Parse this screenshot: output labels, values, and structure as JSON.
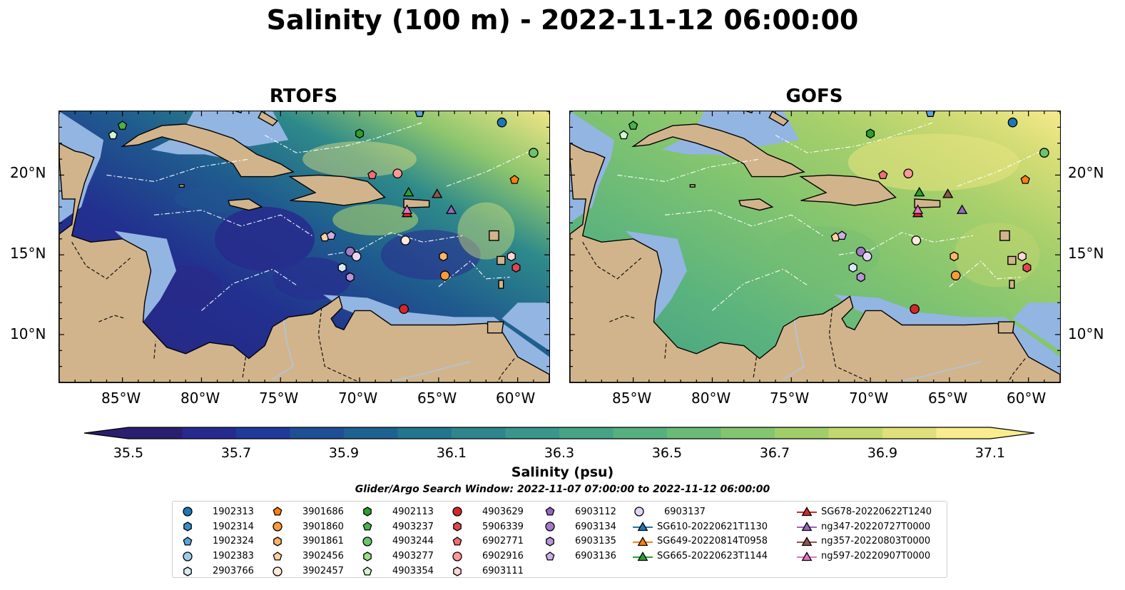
{
  "figure": {
    "title": "Salinity (100 m) - 2022-11-12 06:00:00",
    "panels": [
      {
        "title": "RTOFS",
        "model": "RTOFS"
      },
      {
        "title": "GOFS",
        "model": "GOFS"
      }
    ],
    "lat_labels": [
      "20°N",
      "15°N",
      "10°N"
    ],
    "lon_labels": [
      "85°W",
      "80°W",
      "75°W",
      "70°W",
      "65°W",
      "60°W"
    ]
  },
  "colorbar": {
    "label": "Salinity (psu)",
    "min": 35.5,
    "max": 37.1,
    "ticks": [
      "35.5",
      "35.7",
      "35.9",
      "36.1",
      "36.3",
      "36.5",
      "36.7",
      "36.9",
      "37.1"
    ],
    "colors": [
      "#2a1f6e",
      "#262a8f",
      "#1f3a9a",
      "#1e4f94",
      "#1d6290",
      "#22758e",
      "#2e868c",
      "#3a958a",
      "#47a386",
      "#56b17f",
      "#6abb77",
      "#84c56f",
      "#a2ce6a",
      "#c2d86e",
      "#e0e07a",
      "#f9ec8e"
    ]
  },
  "legend": {
    "search_window": "Glider/Argo Search Window: 2022-11-07 07:00:00 to 2022-11-12 06:00:00",
    "columns": [
      [
        {
          "label": "1902313",
          "shape": "circle",
          "color": "#1f77b4"
        },
        {
          "label": "1902314",
          "shape": "hexagon",
          "color": "#3a8dc9"
        },
        {
          "label": "1902324",
          "shape": "pentagon",
          "color": "#5aa5dc"
        },
        {
          "label": "1902383",
          "shape": "circle",
          "color": "#9ecae9"
        },
        {
          "label": "2903766",
          "shape": "hexagon",
          "color": "#d6eaf8"
        }
      ],
      [
        {
          "label": "3901686",
          "shape": "pentagon",
          "color": "#ff7f0e"
        },
        {
          "label": "3901860",
          "shape": "circle",
          "color": "#fd9a3a"
        },
        {
          "label": "3901861",
          "shape": "hexagon",
          "color": "#fdb56a"
        },
        {
          "label": "3902456",
          "shape": "pentagon",
          "color": "#fdd0a2"
        },
        {
          "label": "3902457",
          "shape": "circle",
          "color": "#feeadb"
        }
      ],
      [
        {
          "label": "4902113",
          "shape": "hexagon",
          "color": "#2ca02c"
        },
        {
          "label": "4903237",
          "shape": "pentagon",
          "color": "#4cb04c"
        },
        {
          "label": "4903244",
          "shape": "circle",
          "color": "#6cc46c"
        },
        {
          "label": "4903277",
          "shape": "hexagon",
          "color": "#98df8a"
        },
        {
          "label": "4903354",
          "shape": "pentagon",
          "color": "#d4f5cd"
        }
      ],
      [
        {
          "label": "4903629",
          "shape": "circle",
          "color": "#d62728"
        },
        {
          "label": "5906339",
          "shape": "hexagon",
          "color": "#e0474c"
        },
        {
          "label": "6902771",
          "shape": "pentagon",
          "color": "#ee6f75"
        },
        {
          "label": "6902916",
          "shape": "circle",
          "color": "#ff9896"
        },
        {
          "label": "6903111",
          "shape": "hexagon",
          "color": "#ffd6d6"
        }
      ],
      [
        {
          "label": "6903112",
          "shape": "pentagon",
          "color": "#9467bd"
        },
        {
          "label": "6903134",
          "shape": "circle",
          "color": "#a47bcb"
        },
        {
          "label": "6903135",
          "shape": "hexagon",
          "color": "#b894d8"
        },
        {
          "label": "6903136",
          "shape": "pentagon",
          "color": "#cbb0e6"
        }
      ],
      [
        {
          "label": "6903137",
          "shape": "circle",
          "color": "#e5d5f5"
        },
        {
          "label": "SG610-20220621T1130",
          "shape": "triangle-line",
          "color": "#1f77b4"
        },
        {
          "label": "SG649-20220814T0958",
          "shape": "triangle-line",
          "color": "#ff7f0e"
        },
        {
          "label": "SG665-20220623T1144",
          "shape": "triangle-line",
          "color": "#2ca02c"
        }
      ],
      [
        {
          "label": "SG678-20220622T1240",
          "shape": "triangle-line",
          "color": "#d62728"
        },
        {
          "label": "ng347-20220727T0000",
          "shape": "triangle-line",
          "color": "#9467bd"
        },
        {
          "label": "ng357-20220803T0000",
          "shape": "triangle-line",
          "color": "#8c564b"
        },
        {
          "label": "ng597-20220907T0000",
          "shape": "triangle-line",
          "color": "#e377c2"
        }
      ]
    ]
  },
  "map_data": {
    "extent": {
      "lon_min": -89,
      "lon_max": -58,
      "lat_min": 7,
      "lat_max": 24
    },
    "markers": [
      {
        "id": "1902313",
        "lon": -61,
        "lat": 23.3
      },
      {
        "id": "1902324",
        "lon": -66.2,
        "lat": 23.9
      },
      {
        "id": "4903237",
        "lon": -85,
        "lat": 23.1
      },
      {
        "id": "4903354",
        "lon": -85.6,
        "lat": 22.5
      },
      {
        "id": "4902113",
        "lon": -70,
        "lat": 22.6
      },
      {
        "id": "4903244",
        "lon": -59,
        "lat": 21.4
      },
      {
        "id": "6902771",
        "lon": -69.2,
        "lat": 20.0
      },
      {
        "id": "6902916",
        "lon": -67.6,
        "lat": 20.1
      },
      {
        "id": "3901686",
        "lon": -60.2,
        "lat": 19.7
      },
      {
        "id": "3902456",
        "lon": -72.2,
        "lat": 16.1
      },
      {
        "id": "6903136",
        "lon": -71.8,
        "lat": 16.2
      },
      {
        "id": "3902457",
        "lon": -67.1,
        "lat": 15.9
      },
      {
        "id": "6903134",
        "lon": -70.6,
        "lat": 15.2
      },
      {
        "id": "6903137",
        "lon": -70.2,
        "lat": 14.9
      },
      {
        "id": "3901861",
        "lon": -64.7,
        "lat": 14.9
      },
      {
        "id": "6903111",
        "lon": -60.4,
        "lat": 14.9
      },
      {
        "id": "2903766",
        "lon": -71.1,
        "lat": 14.2
      },
      {
        "id": "6903135",
        "lon": -70.6,
        "lat": 13.6
      },
      {
        "id": "5906339",
        "lon": -60.1,
        "lat": 14.2
      },
      {
        "id": "3901860",
        "lon": -64.6,
        "lat": 13.7
      },
      {
        "id": "4903629",
        "lon": -67.2,
        "lat": 11.6
      },
      {
        "id": "SG665-20220623T1144",
        "lon": -66.9,
        "lat": 18.9
      },
      {
        "id": "ng357-20220803T0000",
        "lon": -65.1,
        "lat": 18.8
      },
      {
        "id": "ng347-20220727T0000",
        "lon": -64.2,
        "lat": 17.8
      },
      {
        "id": "SG678-20220622T1240",
        "lon": -67.0,
        "lat": 17.6
      },
      {
        "id": "ng597-20220907T0000",
        "lon": -67.0,
        "lat": 17.8
      }
    ]
  }
}
